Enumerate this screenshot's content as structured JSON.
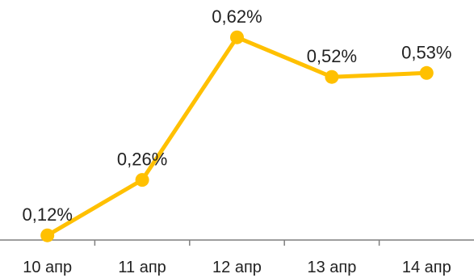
{
  "chart_data": {
    "type": "line",
    "categories": [
      "10 апр",
      "11 апр",
      "12 апр",
      "13 апр",
      "14 апр"
    ],
    "series": [
      {
        "values": [
          0.12,
          0.26,
          0.62,
          0.52,
          0.53
        ],
        "labels": [
          "0,12%",
          "0,26%",
          "0,62%",
          "0,52%",
          "0,53%"
        ]
      }
    ],
    "ylim": [
      0,
      0.7
    ],
    "grid": false,
    "legend": "none",
    "colors": {
      "line": "#FFC000",
      "axis": "#7F7F7F"
    }
  }
}
